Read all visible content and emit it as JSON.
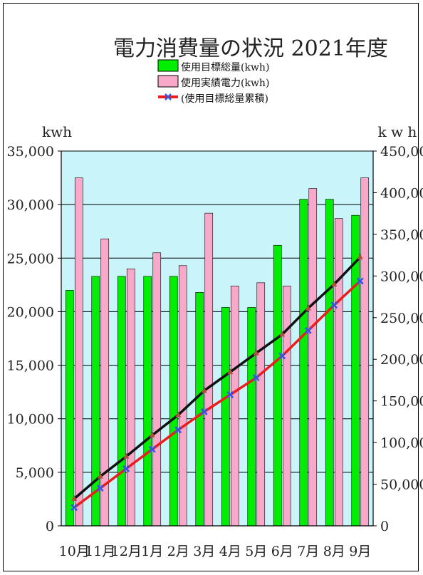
{
  "chart_data": {
    "type": "bar",
    "title": "電力消費量の状況 2021年度",
    "y_left_label": "kwh",
    "y_right_label": "k w h",
    "categories": [
      "10月",
      "11月",
      "12月",
      "1月",
      "2月",
      "3月",
      "4月",
      "5月",
      "6月",
      "7月",
      "8月",
      "9月"
    ],
    "ylim_left": [
      0,
      35000
    ],
    "ylim_right": [
      0,
      450000
    ],
    "yticks_left": [
      "0",
      "5,000",
      "10,000",
      "15,000",
      "20,000",
      "25,000",
      "30,000",
      "35,000"
    ],
    "yticks_right": [
      "0",
      "50,000",
      "100,000",
      "150,000",
      "200,000",
      "250,000",
      "300,000",
      "350,000",
      "400,000",
      "450,000"
    ],
    "gridlines": true,
    "series": [
      {
        "name": "使用目標総量(kwh)",
        "kind": "bar",
        "axis": "left",
        "color": "#00ee00",
        "values": [
          22000,
          23300,
          23300,
          23300,
          23300,
          21800,
          20400,
          20400,
          26200,
          30500,
          30500,
          29000
        ]
      },
      {
        "name": "使用実績電力(kwh)",
        "kind": "bar",
        "axis": "left",
        "color": "#f8a8c8",
        "values": [
          32500,
          26800,
          24000,
          25500,
          24300,
          29200,
          22400,
          22700,
          22400,
          31500,
          28700,
          32500
        ]
      },
      {
        "name": "(使用目標総量累積)",
        "kind": "line",
        "axis": "right",
        "color": "#ee1c1c",
        "marker_color": "#3355ee",
        "values": [
          22000,
          45300,
          68600,
          91900,
          115200,
          137000,
          157400,
          177800,
          204000,
          234500,
          265000,
          294000
        ]
      },
      {
        "name": "",
        "kind": "line",
        "axis": "right",
        "color": "#111111",
        "marker_color": "#b05040",
        "values": [
          32500,
          59300,
          83300,
          108800,
          133100,
          162300,
          184700,
          207400,
          229800,
          261300,
          290000,
          322500
        ]
      }
    ],
    "legend_position": "top"
  }
}
